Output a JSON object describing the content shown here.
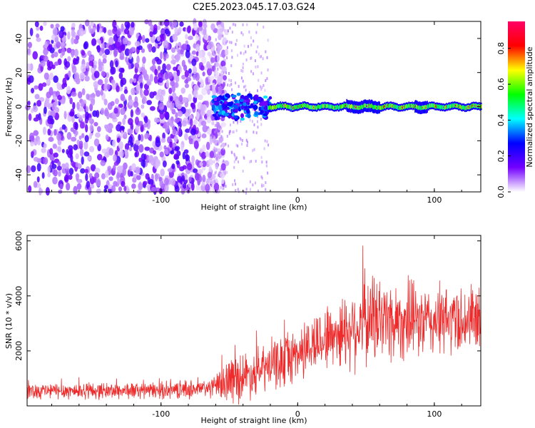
{
  "figure": {
    "title": "C2E5.2023.045.17.03.G24"
  },
  "chart_data": [
    {
      "type": "heatmap",
      "id": "spectrogram",
      "xlabel": "Height of straight line (km)",
      "ylabel": "Frequency (Hz)",
      "xlim": [
        -198,
        134
      ],
      "ylim": [
        -50,
        50
      ],
      "x_ticks": [
        -100,
        0,
        100
      ],
      "y_ticks": [
        -40,
        -20,
        0,
        20,
        40
      ],
      "colormap": [
        "#ffffff",
        "#7300ff",
        "#0000ff",
        "#00ffff",
        "#00ff00",
        "#ffff00",
        "#ff0000",
        "#ff0066"
      ],
      "colorbar": {
        "label": "Normalized spectral amplitude",
        "range": [
          0,
          0.95
        ],
        "ticks": [
          0.0,
          0.2,
          0.4,
          0.6,
          0.8
        ]
      },
      "regions": [
        {
          "x_range": [
            -198,
            -62
          ],
          "y_range": [
            -50,
            50
          ],
          "description_value": "scattered noise, amplitude 0.05-0.2"
        },
        {
          "x_range": [
            -62,
            -20
          ],
          "y_range": [
            -8,
            8
          ],
          "description_value": "turbulent emergence, amplitude 0.2-0.4"
        },
        {
          "x_range": [
            -22,
            134
          ],
          "y_range": [
            -2,
            2
          ],
          "description_value": "coherent line near 0 Hz, amplitude 0.8-0.95"
        }
      ]
    },
    {
      "type": "line",
      "id": "snr",
      "xlabel": "Height of straight line (km)",
      "ylabel": "SNR (10 * v/v)",
      "xlim": [
        -198,
        134
      ],
      "ylim": [
        0,
        6200
      ],
      "x_ticks": [
        -100,
        0,
        100
      ],
      "y_ticks": [
        2000,
        4000,
        6000
      ],
      "color": "#ee2a2a",
      "grid": false,
      "trend": {
        "x": [
          -198,
          -150,
          -100,
          -70,
          -60,
          -50,
          -40,
          -30,
          -20,
          -10,
          0,
          10,
          20,
          30,
          40,
          50,
          60,
          70,
          80,
          90,
          100,
          110,
          120,
          134
        ],
        "mean": [
          550,
          550,
          560,
          620,
          700,
          950,
          1100,
          1200,
          1450,
          1650,
          1900,
          2200,
          2500,
          2650,
          2850,
          3100,
          3200,
          3100,
          3100,
          3050,
          3050,
          3100,
          3150,
          3100
        ],
        "spread": [
          300,
          300,
          300,
          350,
          400,
          900,
          900,
          800,
          900,
          1000,
          1000,
          1100,
          1200,
          1300,
          1500,
          1700,
          1700,
          1500,
          1400,
          1300,
          1300,
          1300,
          1300,
          1300
        ]
      }
    }
  ]
}
